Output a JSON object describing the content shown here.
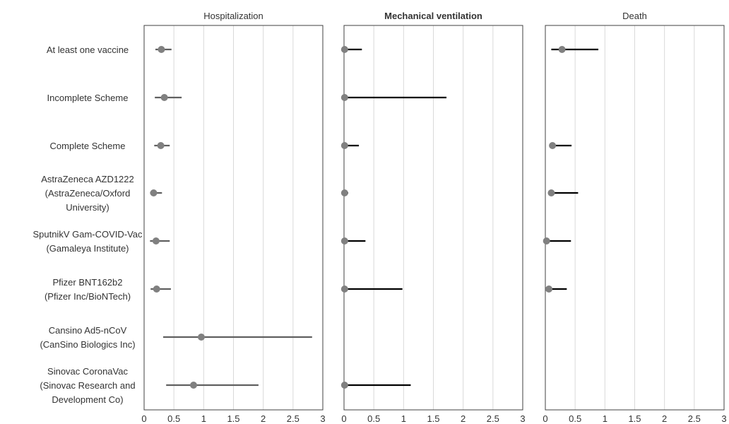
{
  "chart_data": {
    "type": "forest",
    "categories": [
      [
        "At least one vaccine"
      ],
      [
        "Incomplete Scheme"
      ],
      [
        "Complete Scheme"
      ],
      [
        "AstraZeneca AZD1222",
        "(AstraZeneca/Oxford",
        "University)"
      ],
      [
        "SputnikV Gam-COVID-Vac",
        "(Gamaleya Institute)"
      ],
      [
        "Pfizer BNT162b2",
        "(Pfizer Inc/BioNTech)"
      ],
      [
        "Cansino Ad5-nCoV",
        "(CanSino Biologics Inc)"
      ],
      [
        "Sinovac CoronaVac",
        "(Sinovac Research and",
        "Development Co)"
      ]
    ],
    "panels": [
      {
        "title": "Hospitalization",
        "bold": false,
        "xlim": [
          0,
          3
        ],
        "ticks": [
          "0",
          "0.5",
          "1",
          "1.5",
          "2",
          "2.5",
          "3"
        ],
        "point_color": "#808080",
        "line_color": "#606060",
        "rows": [
          {
            "est": 0.29,
            "lo": 0.19,
            "hi": 0.46
          },
          {
            "est": 0.34,
            "lo": 0.18,
            "hi": 0.63
          },
          {
            "est": 0.28,
            "lo": 0.17,
            "hi": 0.43
          },
          {
            "est": 0.16,
            "lo": 0.1,
            "hi": 0.3
          },
          {
            "est": 0.2,
            "lo": 0.1,
            "hi": 0.43
          },
          {
            "est": 0.21,
            "lo": 0.11,
            "hi": 0.45
          },
          {
            "est": 0.96,
            "lo": 0.32,
            "hi": 2.82
          },
          {
            "est": 0.83,
            "lo": 0.37,
            "hi": 1.92
          }
        ]
      },
      {
        "title": "Mechanical ventilation",
        "bold": true,
        "xlim": [
          0,
          3
        ],
        "ticks": [
          "0",
          "0.5",
          "1",
          "1.5",
          "2",
          "2.5",
          "3"
        ],
        "point_color": "#808080",
        "line_color": "#000000",
        "rows": [
          {
            "est": 0.01,
            "lo": 0.01,
            "hi": 0.3
          },
          {
            "est": 0.01,
            "lo": 0.01,
            "hi": 1.72
          },
          {
            "est": 0.01,
            "lo": 0.01,
            "hi": 0.25
          },
          {
            "est": 0.01,
            "lo": 0.01,
            "hi": 0.07
          },
          {
            "est": 0.01,
            "lo": 0.01,
            "hi": 0.36
          },
          {
            "est": 0.01,
            "lo": 0.01,
            "hi": 0.98
          },
          null,
          {
            "est": 0.01,
            "lo": 0.01,
            "hi": 1.12
          }
        ]
      },
      {
        "title": "Death",
        "bold": false,
        "xlim": [
          0,
          3
        ],
        "ticks": [
          "0",
          "0.5",
          "1",
          "1.5",
          "2",
          "2.5",
          "3"
        ],
        "point_color": "#808080",
        "line_color": "#000000",
        "rows": [
          {
            "est": 0.28,
            "lo": 0.1,
            "hi": 0.89
          },
          null,
          {
            "est": 0.12,
            "lo": 0.07,
            "hi": 0.44
          },
          {
            "est": 0.1,
            "lo": 0.07,
            "hi": 0.55
          },
          {
            "est": 0.02,
            "lo": 0.02,
            "hi": 0.43
          },
          {
            "est": 0.06,
            "lo": 0.06,
            "hi": 0.36
          },
          null,
          null
        ]
      }
    ],
    "grid": true
  }
}
